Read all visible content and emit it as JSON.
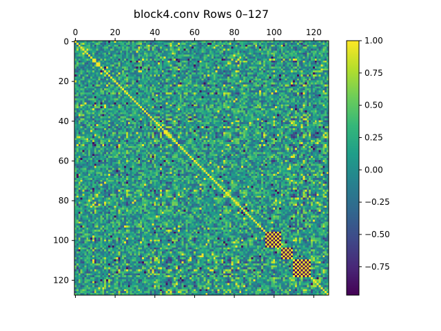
{
  "chart_data": {
    "type": "heatmap",
    "title": "block4.conv Rows 0–127",
    "xlabel": "",
    "ylabel": "",
    "rows": 128,
    "cols": 128,
    "x_axis_position": "top",
    "x_ticks": [
      0,
      20,
      40,
      60,
      80,
      100,
      120
    ],
    "y_ticks": [
      0,
      20,
      40,
      60,
      80,
      100,
      120
    ],
    "bottom_ticks_unlabeled": true,
    "colormap": "viridis",
    "vmin": -0.97,
    "vmax": 1.0,
    "colorbar_ticks": [
      "1.00",
      "0.75",
      "0.50",
      "0.25",
      "0.00",
      "−0.25",
      "−0.50",
      "−0.75"
    ],
    "colorbar_tick_values": [
      1.0,
      0.75,
      0.5,
      0.25,
      0.0,
      -0.25,
      -0.5,
      -0.75
    ],
    "diagonal_value": 1.0,
    "typical_offdiagonal_range": [
      -0.5,
      0.6
    ],
    "highlighted_blocks": [
      {
        "rows": [
          96,
          103
        ],
        "cols": [
          96,
          103
        ],
        "pattern": "checkerboard",
        "values": [
          1.0,
          -0.9
        ]
      },
      {
        "rows": [
          104,
          109
        ],
        "cols": [
          104,
          109
        ],
        "pattern": "checkerboard",
        "values": [
          1.0,
          -0.9
        ]
      },
      {
        "rows": [
          110,
          118
        ],
        "cols": [
          110,
          118
        ],
        "pattern": "checkerboard",
        "values": [
          1.0,
          -0.9
        ]
      }
    ],
    "grid": false,
    "legend": "none"
  }
}
